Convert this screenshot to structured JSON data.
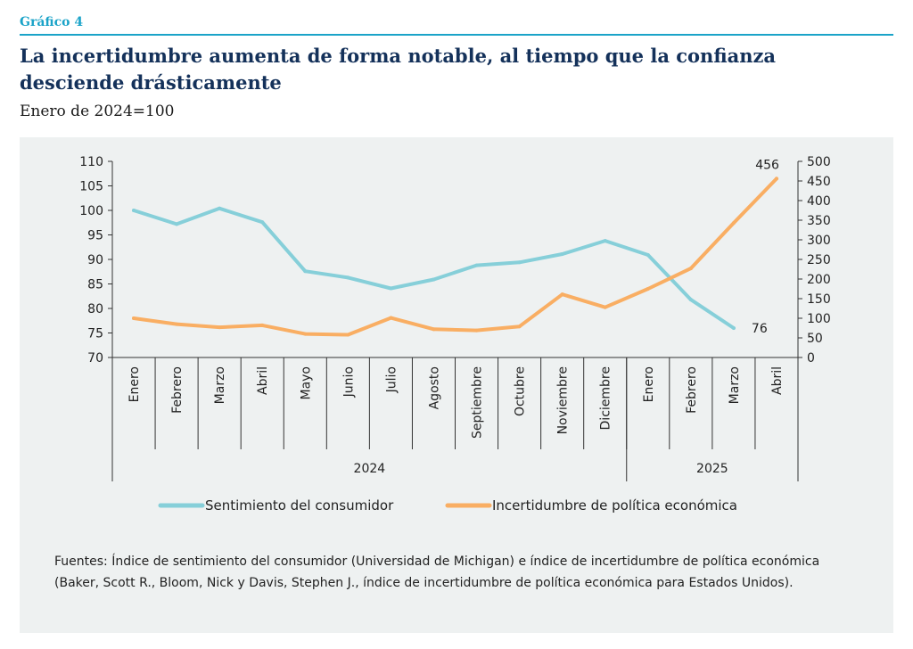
{
  "header": {
    "figure_label": "Gráfico 4",
    "title": "La incertidumbre aumenta de forma notable, al tiempo que la confianza desciende drásticamente",
    "subtitle": "Enero de 2024=100"
  },
  "source": "Fuentes: Índice de sentimiento del consumidor (Universidad de Michigan) e índice de incertidumbre de política económica (Baker, Scott R., Bloom, Nick y Davis, Stephen J., índice de incertidumbre de política económica para Estados Unidos).",
  "chart_data": {
    "type": "line",
    "categories": [
      "Enero",
      "Febrero",
      "Marzo",
      "Abril",
      "Mayo",
      "Junio",
      "Julio",
      "Agosto",
      "Septiembre",
      "Octubre",
      "Noviembre",
      "Diciembre",
      "Enero",
      "Febrero",
      "Marzo",
      "Abril"
    ],
    "year_groups": [
      {
        "label": "2024",
        "start": 0,
        "end": 11
      },
      {
        "label": "2025",
        "start": 12,
        "end": 15
      }
    ],
    "series": [
      {
        "name": "Sentimiento del consumidor",
        "axis": "left",
        "color": "#86cfd9",
        "values": [
          100,
          97.2,
          100.4,
          97.6,
          87.6,
          86.3,
          84.1,
          85.9,
          88.8,
          89.4,
          91.1,
          93.8,
          90.9,
          81.8,
          76,
          null
        ],
        "end_label": "76"
      },
      {
        "name": "Incertidumbre de política económica",
        "axis": "right",
        "color": "#f9ae63",
        "values": [
          100,
          85,
          77,
          82,
          60,
          58,
          101,
          72,
          69,
          79,
          161,
          128,
          175,
          227,
          343,
          456
        ],
        "end_label": "456"
      }
    ],
    "y_left": {
      "min": 70,
      "max": 110,
      "ticks": [
        70,
        75,
        80,
        85,
        90,
        95,
        100,
        105,
        110
      ]
    },
    "y_right": {
      "min": 0,
      "max": 500,
      "ticks": [
        0,
        50,
        100,
        150,
        200,
        250,
        300,
        350,
        400,
        450,
        500
      ]
    },
    "grid": false,
    "legend_position": "bottom"
  }
}
